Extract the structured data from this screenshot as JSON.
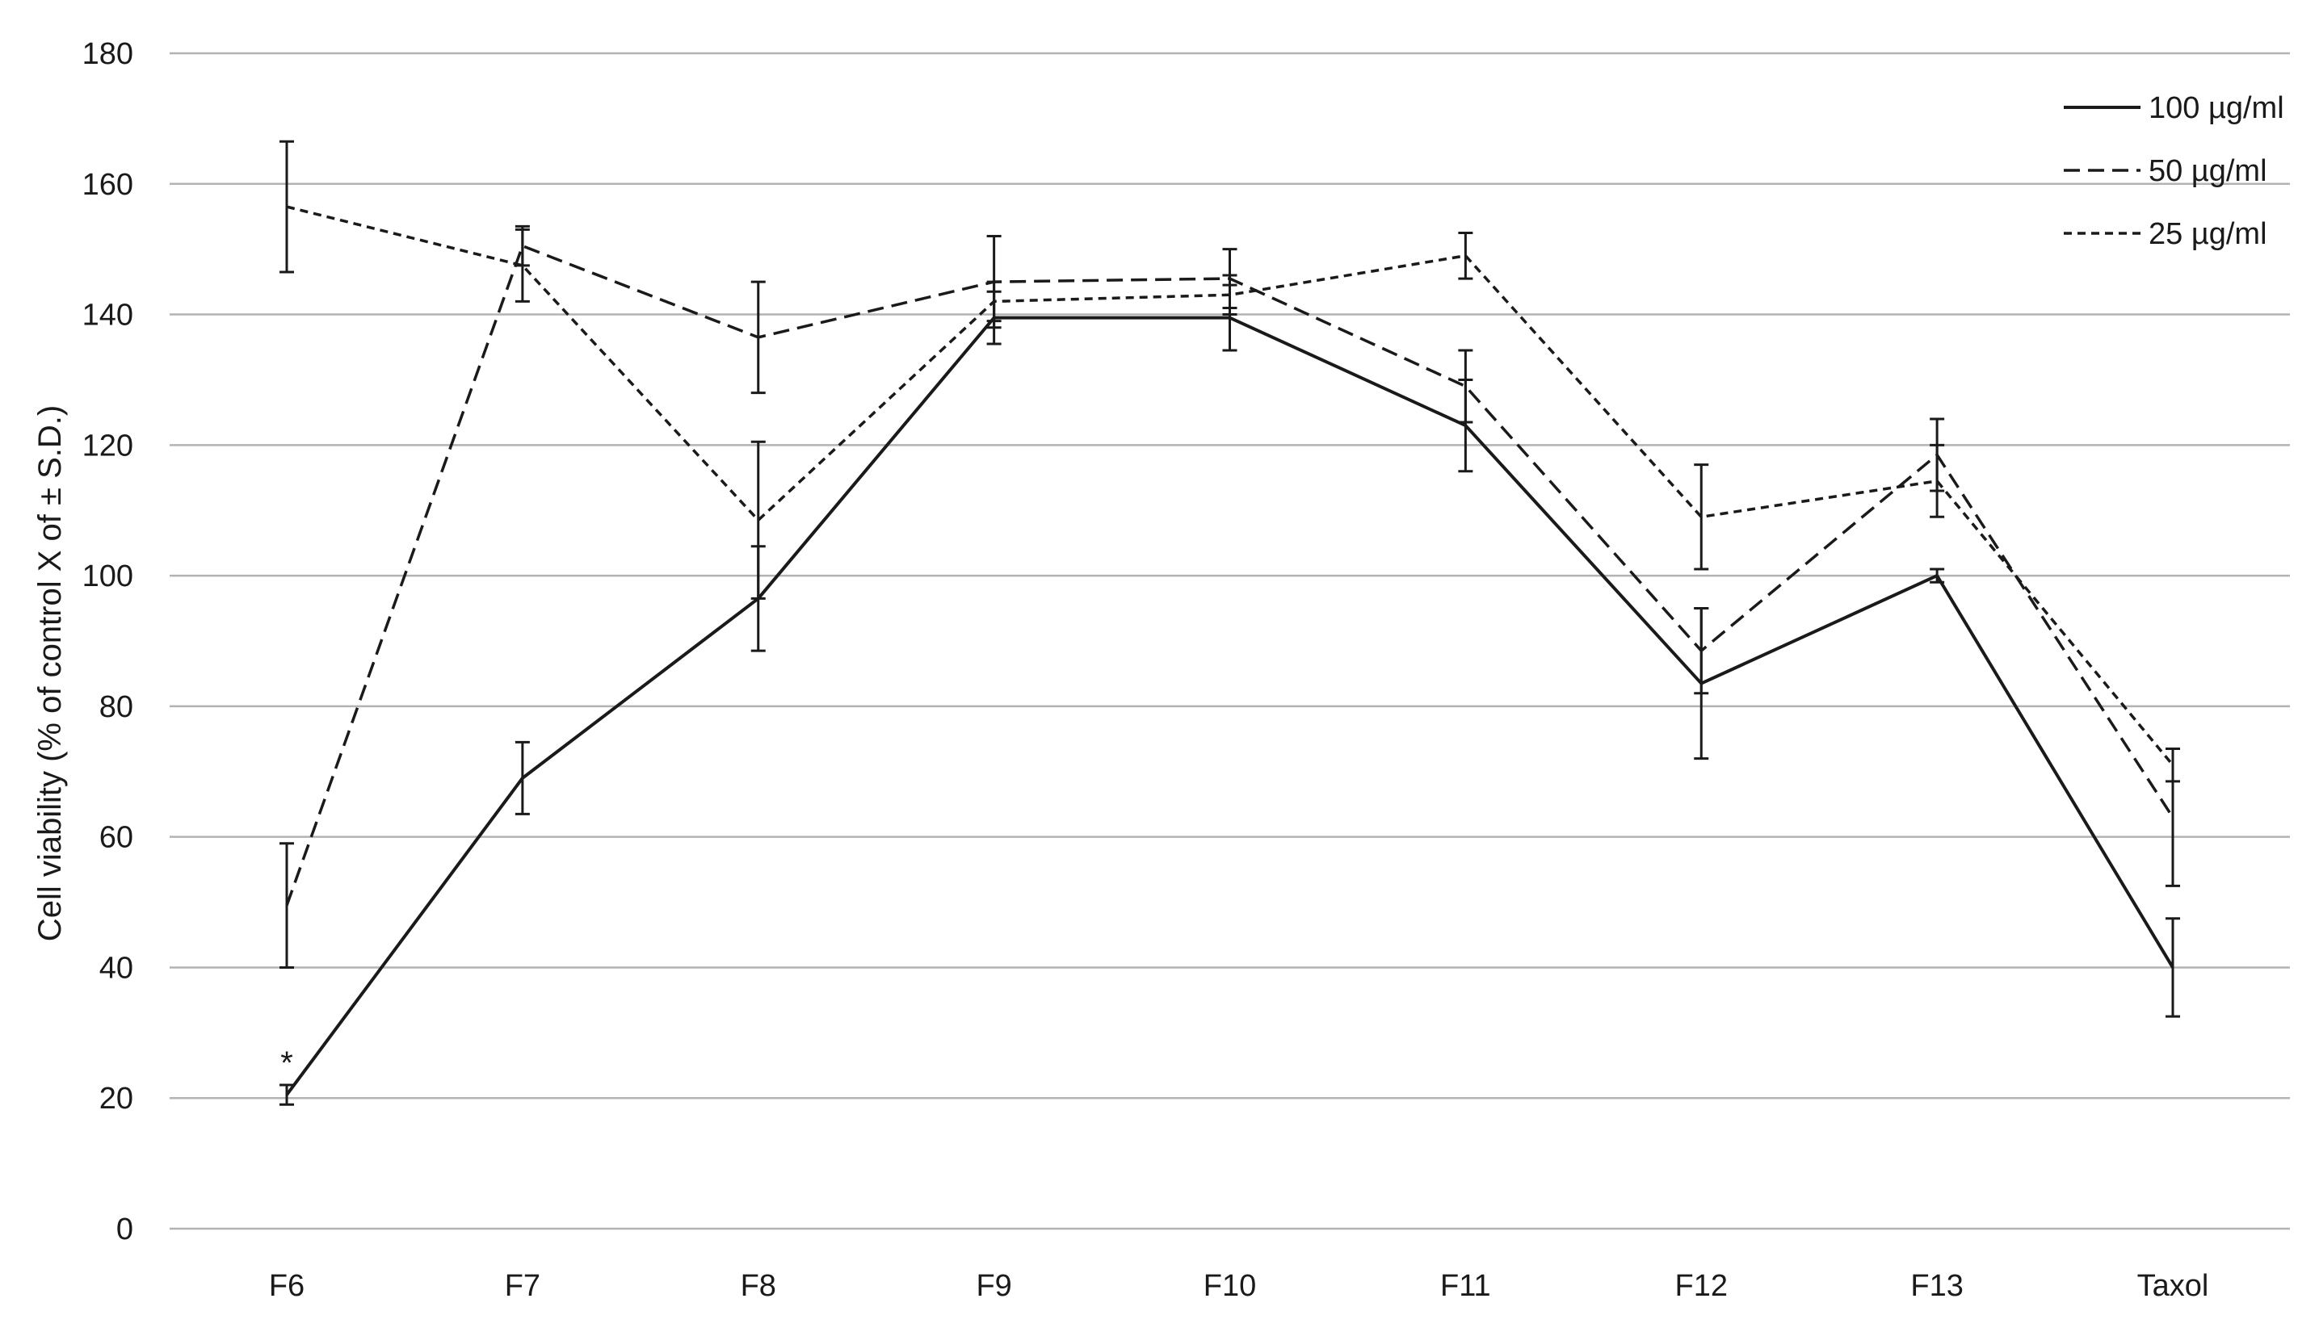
{
  "chart_data": {
    "type": "line",
    "title": "",
    "xlabel": "",
    "ylabel": "Cell viability (% of control X of ± S.D.)",
    "ylim": [
      0,
      180
    ],
    "yticks": [
      0,
      20,
      40,
      60,
      80,
      100,
      120,
      140,
      160,
      180
    ],
    "grid": true,
    "legend_position": "top-right",
    "categories": [
      "F6",
      "F7",
      "F8",
      "F9",
      "F10",
      "F11",
      "F12",
      "F13",
      "Taxol"
    ],
    "series": [
      {
        "name": "100 µg/ml",
        "style": "solid",
        "values": [
          20.5,
          69,
          96.5,
          139.5,
          139.5,
          123,
          83.5,
          100,
          40
        ],
        "errors": [
          1.5,
          5.5,
          8,
          4,
          5,
          7,
          11.5,
          1,
          7.5
        ]
      },
      {
        "name": "50 µg/ml",
        "style": "dashed",
        "values": [
          49.5,
          150.5,
          136.5,
          145,
          145.5,
          129,
          88.5,
          118.5,
          63
        ],
        "errors": [
          9.5,
          3,
          8.5,
          7,
          4.5,
          5.5,
          6.5,
          5.5,
          10.5
        ]
      },
      {
        "name": "25 µg/ml",
        "style": "dotted",
        "values": [
          156.5,
          147.5,
          108.5,
          142,
          143,
          149,
          109,
          114.5,
          71
        ],
        "errors": [
          10,
          5.5,
          12,
          3,
          3,
          3.5,
          8,
          5.5,
          2.5
        ]
      }
    ],
    "annotations": [
      {
        "category": "F6",
        "text": "*"
      }
    ]
  },
  "colors": {
    "line": "#1a1a1a",
    "grid": "#b3b3b3",
    "background": "#ffffff"
  }
}
